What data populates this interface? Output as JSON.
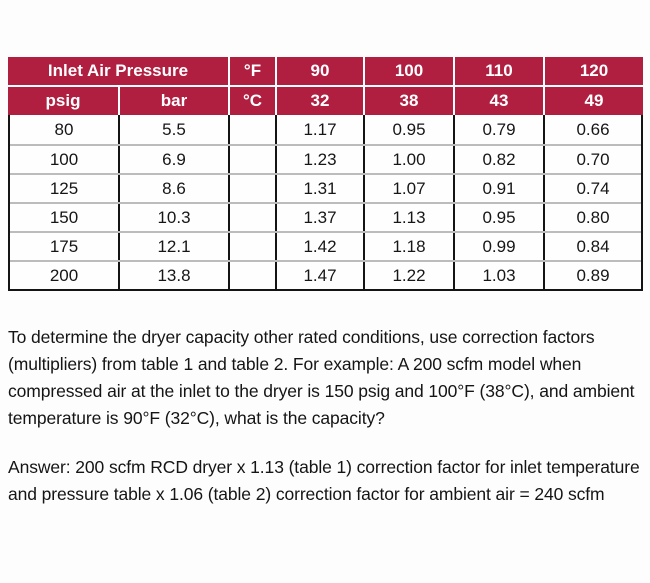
{
  "colors": {
    "header_bg": "#B01E40",
    "header_text": "#FFFFFF",
    "grid_vertical": "#141414",
    "grid_horizontal": "#BCBCBC",
    "body_text": "#151515"
  },
  "table": {
    "header": {
      "inlet_air_pressure": "Inlet Air Pressure",
      "unit_f": "°F",
      "unit_c": "°C",
      "psig": "psig",
      "bar": "bar",
      "temps_f": [
        "90",
        "100",
        "110",
        "120"
      ],
      "temps_c": [
        "32",
        "38",
        "43",
        "49"
      ]
    },
    "rows": [
      [
        "80",
        "5.5",
        "",
        "1.17",
        "0.95",
        "0.79",
        "0.66"
      ],
      [
        "100",
        "6.9",
        "",
        "1.23",
        "1.00",
        "0.82",
        "0.70"
      ],
      [
        "125",
        "8.6",
        "",
        "1.31",
        "1.07",
        "0.91",
        "0.74"
      ],
      [
        "150",
        "10.3",
        "",
        "1.37",
        "1.13",
        "0.95",
        "0.80"
      ],
      [
        "175",
        "12.1",
        "",
        "1.42",
        "1.18",
        "0.99",
        "0.84"
      ],
      [
        "200",
        "13.8",
        "",
        "1.47",
        "1.22",
        "1.03",
        "0.89"
      ]
    ]
  },
  "paragraphs": {
    "explanation": "To determine the dryer capacity other rated conditions, use correction factors (multipliers) from table 1 and table 2. For example: A 200 scfm model when compressed air at the inlet to the dryer is 150 psig and 100°F (38°C), and ambient temperature is 90°F (32°C), what is the capacity?",
    "answer": "Answer: 200 scfm RCD dryer x 1.13 (table 1) correction factor for inlet temperature and pressure table x 1.06 (table 2) correction factor for ambient air = 240 scfm"
  }
}
